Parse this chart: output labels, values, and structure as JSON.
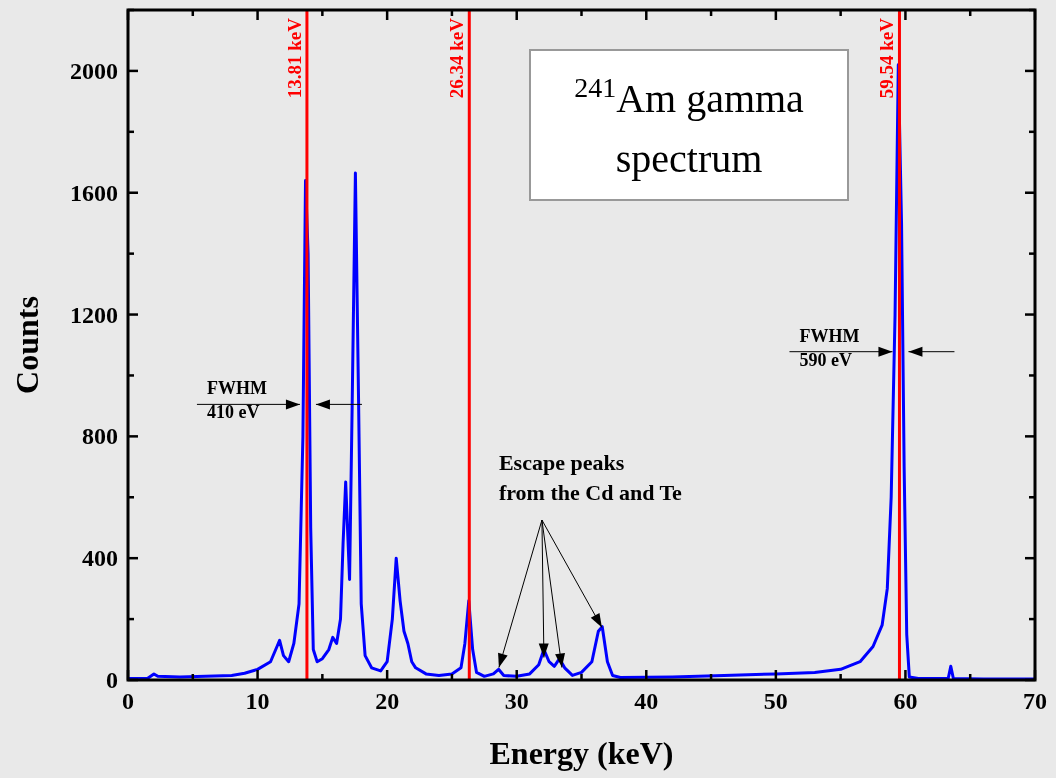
{
  "chart_data": {
    "type": "line",
    "title": "$^{241}$Am gamma spectrum",
    "xlabel": "Energy (keV)",
    "ylabel": "Counts",
    "xlim": [
      0,
      70
    ],
    "xticks": [
      0,
      {
        "value": 5,
        "label": null
      },
      10,
      {
        "value": 15,
        "label": null
      },
      20,
      {
        "value": 25,
        "label": null
      },
      30,
      {
        "value": 35,
        "label": null
      },
      40,
      {
        "value": 45,
        "label": null
      },
      50,
      {
        "value": 55,
        "label": null
      },
      60,
      {
        "value": 65,
        "label": null
      },
      70
    ],
    "ylim": [
      0,
      2200
    ],
    "yticks": [
      0,
      {
        "value": 200,
        "label": null
      },
      400,
      {
        "value": 600,
        "label": null
      },
      800,
      {
        "value": 1000,
        "label": null
      },
      1200,
      {
        "value": 1400,
        "label": null
      },
      1600,
      {
        "value": 1800,
        "label": null
      },
      2000,
      {
        "value": 2200,
        "label": null
      }
    ],
    "grid": false,
    "marker": "none",
    "line_style": "solid",
    "series": [
      {
        "color": "#0000ff",
        "x": [
          0,
          1.5,
          2,
          2.3,
          4,
          6,
          8,
          9,
          10,
          11,
          11.5,
          11.7,
          12,
          12.4,
          12.8,
          13.2,
          13.5,
          13.7,
          13.9,
          14.1,
          14.3,
          14.6,
          15,
          15.5,
          15.8,
          16.1,
          16.4,
          16.6,
          16.8,
          17.1,
          17.3,
          17.55,
          17.8,
          18,
          18.3,
          18.8,
          19.5,
          20,
          20.4,
          20.7,
          21,
          21.3,
          21.6,
          21.9,
          22.2,
          23,
          24,
          25,
          25.7,
          26,
          26.3,
          26.6,
          26.9,
          27.5,
          28.2,
          28.6,
          29,
          30,
          31,
          31.7,
          32.1,
          32.5,
          32.9,
          33.3,
          33.7,
          34.3,
          35,
          35.8,
          36.3,
          36.6,
          37,
          37.4,
          38,
          42,
          46,
          50,
          53,
          55,
          56.5,
          57.5,
          58.2,
          58.6,
          58.9,
          59.2,
          59.45,
          59.7,
          59.9,
          60.1,
          60.3,
          61,
          63.3,
          63.5,
          63.7,
          66,
          70
        ],
        "values": [
          5,
          5,
          20,
          12,
          10,
          12,
          15,
          22,
          35,
          60,
          110,
          130,
          80,
          60,
          120,
          250,
          800,
          1640,
          1400,
          500,
          100,
          60,
          70,
          100,
          140,
          120,
          200,
          450,
          650,
          330,
          900,
          1665,
          900,
          250,
          80,
          40,
          30,
          60,
          200,
          400,
          260,
          160,
          120,
          60,
          40,
          20,
          15,
          20,
          40,
          120,
          260,
          100,
          25,
          12,
          20,
          35,
          15,
          12,
          20,
          50,
          100,
          60,
          45,
          70,
          40,
          15,
          25,
          60,
          160,
          175,
          60,
          15,
          8,
          10,
          15,
          20,
          25,
          35,
          60,
          110,
          180,
          300,
          600,
          1200,
          2020,
          1500,
          700,
          150,
          10,
          5,
          5,
          45,
          5,
          3,
          3
        ]
      }
    ],
    "ref_lines": [
      {
        "axis": "x",
        "value": 13.81,
        "label": "13.81 keV",
        "color": "#ff0000"
      },
      {
        "axis": "x",
        "value": 26.34,
        "label": "26.34 keV",
        "color": "#ff0000"
      },
      {
        "axis": "x",
        "value": 59.54,
        "label": "59.54 keV",
        "color": "#ff0000"
      }
    ],
    "annotations": [
      {
        "text": "FWHM\n410 eV",
        "x": 13.81,
        "y": 905
      },
      {
        "text": "FWHM\n590 eV",
        "x": 59.54,
        "y": 1078
      },
      {
        "text": "Escape peaks\nfrom the Cd and Te",
        "x": 32.1,
        "y": 100
      }
    ]
  }
}
